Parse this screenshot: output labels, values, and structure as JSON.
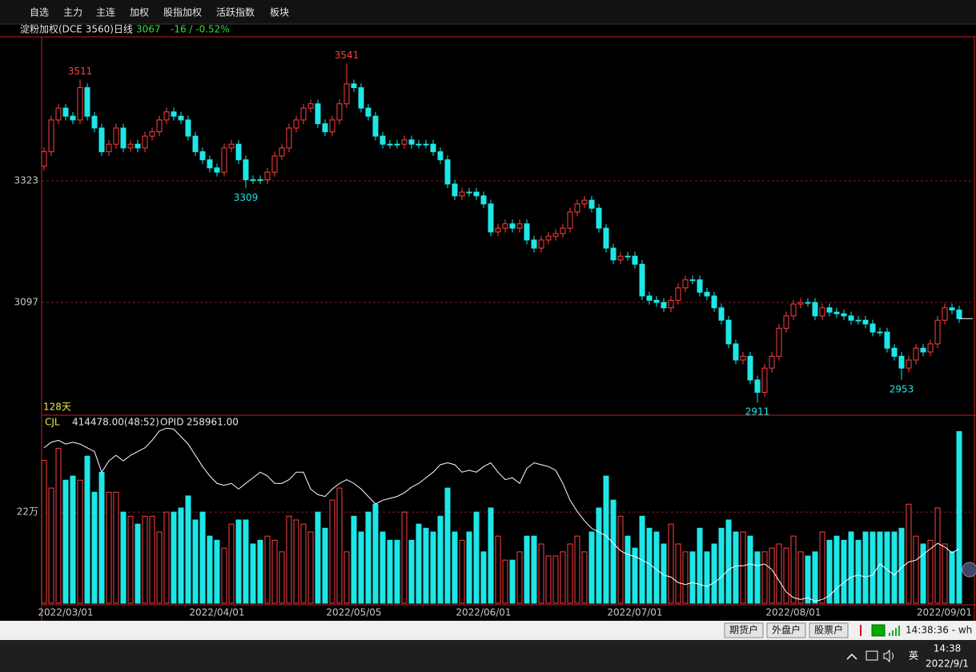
{
  "menu": [
    "自选",
    "主力",
    "主连",
    "加权",
    "股指加权",
    "活跃指数",
    "板块"
  ],
  "header": {
    "title": "淀粉加权(DCE 3560)日线",
    "price": "3067",
    "change": "-16 / -0.52%"
  },
  "chart_data": [
    {
      "type": "candlestick",
      "period": "128天",
      "up_color": "#ff4040",
      "down_color": "#1ee6e6",
      "grid": true,
      "ylim": [
        2889,
        3589
      ],
      "yticks": [
        3097,
        3323
      ],
      "open": [
        3350,
        3377,
        3436,
        3458,
        3443,
        3436,
        3496,
        3443,
        3421,
        3377,
        3391,
        3421,
        3384,
        3391,
        3384,
        3406,
        3414,
        3436,
        3451,
        3443,
        3436,
        3406,
        3377,
        3362,
        3347,
        3339,
        3384,
        3391,
        3362,
        3325,
        3325,
        3325,
        3339,
        3369,
        3384,
        3421,
        3436,
        3458,
        3466,
        3429,
        3414,
        3436,
        3466,
        3503,
        3496,
        3458,
        3443,
        3406,
        3391,
        3391,
        3391,
        3399,
        3391,
        3391,
        3391,
        3377,
        3362,
        3317,
        3295,
        3302,
        3302,
        3295,
        3280,
        3228,
        3235,
        3243,
        3235,
        3243,
        3213,
        3198,
        3213,
        3220,
        3225,
        3235,
        3265,
        3280,
        3287,
        3272,
        3235,
        3198,
        3176,
        3183,
        3183,
        3168,
        3109,
        3101,
        3097,
        3087,
        3101,
        3124,
        3139,
        3139,
        3116,
        3109,
        3087,
        3064,
        3020,
        2990,
        2997,
        2953,
        2930,
        2975,
        2997,
        3049,
        3072,
        3094,
        3097,
        3097,
        3072,
        3087,
        3079,
        3076,
        3072,
        3064,
        3064,
        3057,
        3042,
        3042,
        3012,
        2997,
        2975,
        2990,
        3012,
        3005,
        3020,
        3064,
        3087,
        3083
      ],
      "high": [
        3385,
        3444,
        3466,
        3466,
        3451,
        3511,
        3504,
        3451,
        3429,
        3399,
        3429,
        3429,
        3399,
        3399,
        3414,
        3422,
        3444,
        3459,
        3459,
        3451,
        3444,
        3414,
        3385,
        3370,
        3355,
        3392,
        3399,
        3399,
        3370,
        3333,
        3333,
        3347,
        3377,
        3392,
        3429,
        3444,
        3466,
        3474,
        3474,
        3437,
        3444,
        3474,
        3541,
        3511,
        3504,
        3466,
        3451,
        3414,
        3399,
        3399,
        3407,
        3407,
        3399,
        3399,
        3399,
        3385,
        3370,
        3325,
        3310,
        3310,
        3310,
        3303,
        3288,
        3243,
        3251,
        3251,
        3251,
        3251,
        3221,
        3221,
        3228,
        3233,
        3243,
        3273,
        3288,
        3295,
        3295,
        3280,
        3243,
        3206,
        3191,
        3191,
        3191,
        3176,
        3117,
        3109,
        3105,
        3109,
        3132,
        3147,
        3147,
        3147,
        3124,
        3117,
        3095,
        3072,
        3028,
        3005,
        3005,
        2961,
        2983,
        3005,
        3057,
        3080,
        3102,
        3105,
        3105,
        3105,
        3095,
        3095,
        3087,
        3084,
        3080,
        3072,
        3072,
        3065,
        3050,
        3050,
        3020,
        3005,
        2998,
        3020,
        3020,
        3028,
        3072,
        3095,
        3095,
        3091
      ],
      "low": [
        3342,
        3369,
        3428,
        3435,
        3428,
        3428,
        3435,
        3413,
        3369,
        3369,
        3383,
        3376,
        3376,
        3376,
        3376,
        3398,
        3406,
        3428,
        3435,
        3428,
        3398,
        3369,
        3354,
        3339,
        3331,
        3331,
        3376,
        3354,
        3309,
        3317,
        3317,
        3317,
        3331,
        3361,
        3376,
        3413,
        3428,
        3450,
        3421,
        3406,
        3406,
        3428,
        3458,
        3488,
        3450,
        3435,
        3398,
        3383,
        3383,
        3383,
        3383,
        3383,
        3383,
        3383,
        3369,
        3354,
        3309,
        3287,
        3287,
        3294,
        3287,
        3272,
        3220,
        3220,
        3227,
        3227,
        3227,
        3205,
        3190,
        3190,
        3205,
        3212,
        3217,
        3227,
        3257,
        3272,
        3264,
        3227,
        3190,
        3168,
        3168,
        3175,
        3160,
        3101,
        3093,
        3089,
        3079,
        3079,
        3093,
        3116,
        3131,
        3108,
        3101,
        3079,
        3056,
        3012,
        2982,
        2982,
        2945,
        2911,
        2922,
        2967,
        2989,
        3041,
        3064,
        3086,
        3089,
        3064,
        3064,
        3071,
        3068,
        3064,
        3056,
        3056,
        3049,
        3034,
        3034,
        3004,
        2989,
        2953,
        2967,
        2982,
        2997,
        2997,
        3012,
        3056,
        3075,
        3059
      ],
      "close": [
        3377,
        3436,
        3458,
        3443,
        3436,
        3496,
        3443,
        3421,
        3377,
        3391,
        3421,
        3384,
        3391,
        3384,
        3406,
        3414,
        3436,
        3451,
        3443,
        3436,
        3406,
        3377,
        3362,
        3347,
        3339,
        3384,
        3391,
        3362,
        3325,
        3325,
        3325,
        3339,
        3369,
        3384,
        3421,
        3436,
        3458,
        3466,
        3429,
        3414,
        3436,
        3466,
        3503,
        3496,
        3458,
        3443,
        3406,
        3391,
        3391,
        3391,
        3399,
        3391,
        3391,
        3391,
        3377,
        3362,
        3317,
        3295,
        3302,
        3302,
        3295,
        3280,
        3228,
        3235,
        3243,
        3235,
        3243,
        3213,
        3198,
        3213,
        3220,
        3225,
        3235,
        3265,
        3280,
        3287,
        3272,
        3235,
        3198,
        3176,
        3183,
        3183,
        3168,
        3109,
        3101,
        3097,
        3087,
        3101,
        3124,
        3139,
        3139,
        3116,
        3109,
        3087,
        3064,
        3020,
        2990,
        2997,
        2953,
        2930,
        2975,
        2997,
        3049,
        3072,
        3094,
        3097,
        3097,
        3072,
        3087,
        3079,
        3076,
        3072,
        3064,
        3064,
        3057,
        3042,
        3042,
        3012,
        2997,
        2975,
        2990,
        3012,
        3005,
        3020,
        3064,
        3087,
        3083,
        3067
      ],
      "annotations": [
        {
          "value": 3511,
          "index": 5,
          "side": "high"
        },
        {
          "value": 3541,
          "index": 42,
          "side": "high"
        },
        {
          "value": 3309,
          "index": 28,
          "side": "low"
        },
        {
          "value": 2911,
          "index": 99,
          "side": "low"
        },
        {
          "value": 2953,
          "index": 119,
          "side": "low"
        }
      ]
    },
    {
      "type": "bar",
      "grid": true,
      "summary": "414478.00(48:52)",
      "opid_label": "258961.00",
      "ylim": [
        0,
        452000
      ],
      "yticks": [
        {
          "value": 220000,
          "label": "22万"
        }
      ],
      "y2lim": [
        230000,
        330000
      ],
      "categories": [
        null,
        null,
        null,
        "2022/03/01",
        null,
        null,
        null,
        null,
        null,
        null,
        null,
        null,
        null,
        null,
        null,
        null,
        null,
        null,
        null,
        null,
        null,
        null,
        null,
        null,
        "2022/04/01",
        null,
        null,
        null,
        null,
        null,
        null,
        null,
        null,
        null,
        null,
        null,
        null,
        null,
        null,
        null,
        null,
        null,
        null,
        "2022/05/05",
        null,
        null,
        null,
        null,
        null,
        null,
        null,
        null,
        null,
        null,
        null,
        null,
        null,
        null,
        null,
        null,
        null,
        "2022/06/01",
        null,
        null,
        null,
        null,
        null,
        null,
        null,
        null,
        null,
        null,
        null,
        null,
        null,
        null,
        null,
        null,
        null,
        null,
        null,
        null,
        "2022/07/01",
        null,
        null,
        null,
        null,
        null,
        null,
        null,
        null,
        null,
        null,
        null,
        null,
        null,
        null,
        null,
        null,
        null,
        null,
        null,
        null,
        null,
        "2022/08/01",
        null,
        null,
        null,
        null,
        null,
        null,
        null,
        null,
        null,
        null,
        null,
        null,
        null,
        null,
        null,
        null,
        null,
        null,
        null,
        null,
        null,
        null,
        "2022/09/01"
      ],
      "series": [
        {
          "name": "CJL",
          "color": "#e8e84a",
          "values": [
            345000,
            278000,
            374000,
            297000,
            307000,
            297000,
            355000,
            268000,
            316000,
            268000,
            268000,
            220000,
            210000,
            191000,
            210000,
            210000,
            172000,
            220000,
            220000,
            230000,
            259000,
            201000,
            220000,
            162000,
            152000,
            133000,
            191000,
            201000,
            201000,
            143000,
            152000,
            162000,
            152000,
            124000,
            210000,
            201000,
            191000,
            172000,
            220000,
            181000,
            249000,
            278000,
            124000,
            210000,
            172000,
            220000,
            239000,
            172000,
            152000,
            152000,
            220000,
            152000,
            191000,
            181000,
            172000,
            210000,
            278000,
            172000,
            152000,
            172000,
            220000,
            124000,
            230000,
            162000,
            104000,
            104000,
            124000,
            162000,
            162000,
            143000,
            114000,
            114000,
            124000,
            143000,
            162000,
            124000,
            172000,
            230000,
            307000,
            249000,
            210000,
            162000,
            133000,
            210000,
            181000,
            172000,
            143000,
            191000,
            143000,
            124000,
            124000,
            181000,
            124000,
            143000,
            181000,
            201000,
            172000,
            172000,
            162000,
            124000,
            124000,
            133000,
            143000,
            133000,
            162000,
            124000,
            114000,
            124000,
            172000,
            152000,
            162000,
            152000,
            172000,
            152000,
            172000,
            172000,
            172000,
            172000,
            172000,
            181000,
            239000,
            162000,
            143000,
            152000,
            230000,
            143000,
            124000,
            414478
          ]
        },
        {
          "name": "OPID",
          "axis": "y2",
          "color": "#ffffff",
          "values": [
            313000,
            316000,
            317000,
            315000,
            316000,
            315000,
            313000,
            311000,
            300000,
            306000,
            309000,
            306000,
            309000,
            311000,
            313000,
            317000,
            322000,
            323500,
            323000,
            319000,
            315000,
            309000,
            303000,
            298000,
            294000,
            293000,
            294000,
            291000,
            294000,
            297000,
            300000,
            298000,
            294000,
            294000,
            296000,
            300000,
            300000,
            291000,
            288000,
            287000,
            291000,
            294000,
            296000,
            294000,
            291000,
            287000,
            283000,
            285000,
            286000,
            287000,
            289000,
            292000,
            294000,
            297000,
            300000,
            304000,
            305000,
            304000,
            300000,
            301000,
            300000,
            303000,
            305000,
            300000,
            296000,
            297000,
            294000,
            302000,
            305000,
            304000,
            303000,
            301000,
            294000,
            285000,
            279000,
            274000,
            270000,
            268000,
            266000,
            262000,
            258000,
            256000,
            255000,
            253000,
            251000,
            248000,
            245000,
            244000,
            241000,
            240000,
            241000,
            240000,
            239000,
            241000,
            244000,
            248000,
            250000,
            250000,
            251000,
            250000,
            251000,
            248000,
            242000,
            236000,
            233000,
            232000,
            233000,
            231000,
            232000,
            234000,
            238000,
            241000,
            244000,
            245000,
            244000,
            245000,
            251000,
            248000,
            245000,
            249000,
            252000,
            253000,
            256000,
            259000,
            262000,
            260000,
            257000,
            258961
          ]
        }
      ]
    }
  ],
  "status_bar": {
    "buttons": [
      "期货户",
      "外盘户",
      "股票户"
    ],
    "clock": "14:38:36 - wh"
  },
  "taskbar": {
    "ime": "英",
    "time": "14:38",
    "date": "2022/9/1"
  }
}
